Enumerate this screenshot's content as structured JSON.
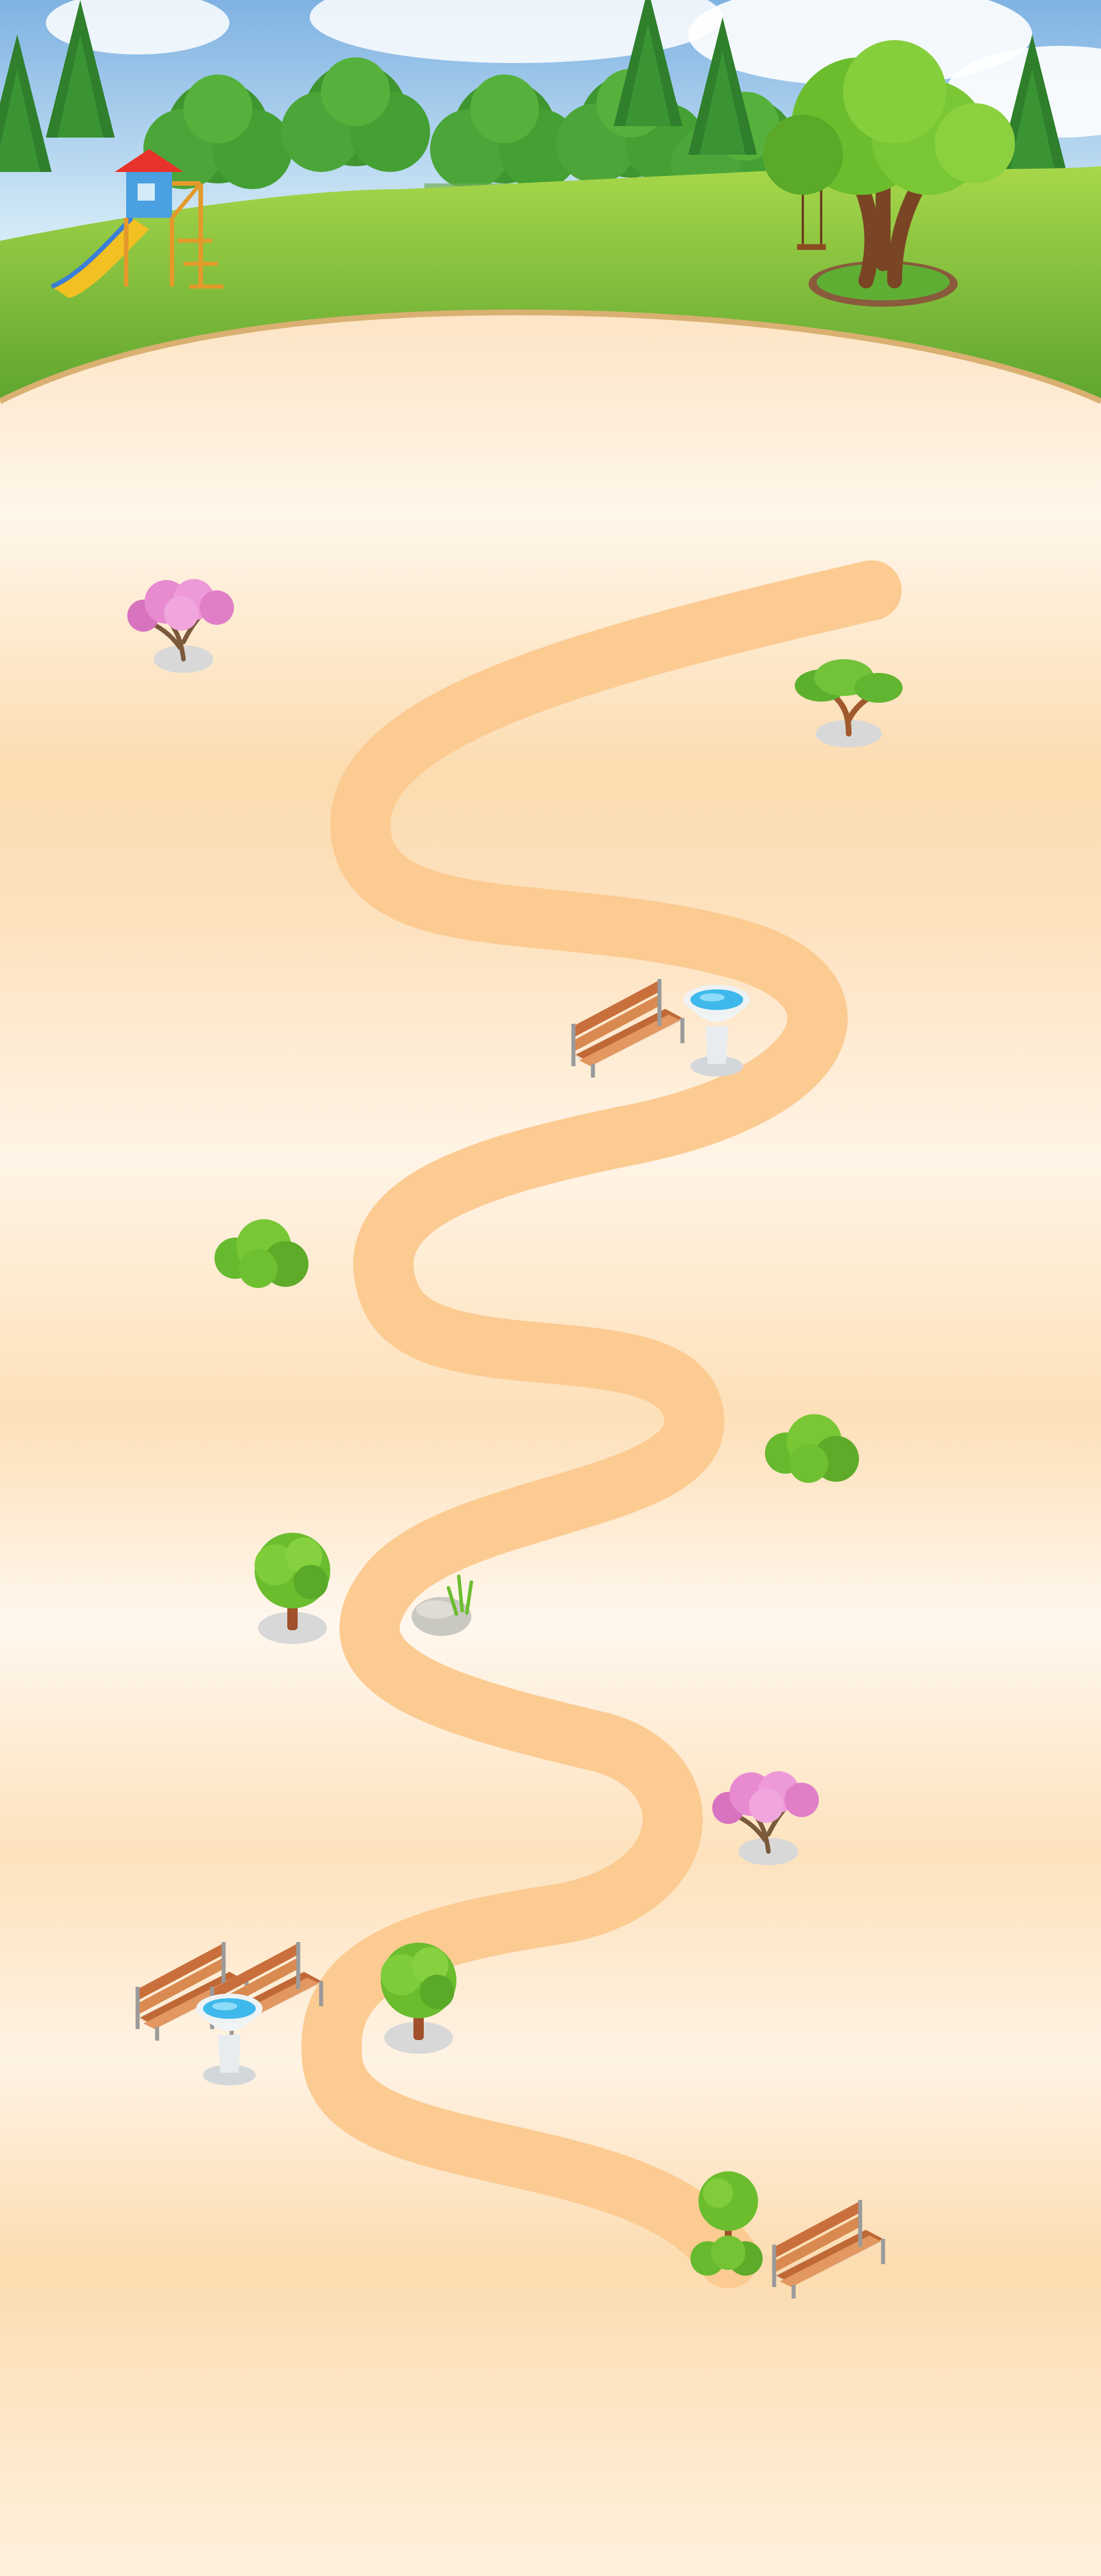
{
  "scene": {
    "name": "park-level-map",
    "colors": {
      "sky": "#9ec9ec",
      "cloud": "#ffffff",
      "grass": "#7cc23f",
      "grass_light": "#a6d64c",
      "grass_dark": "#4f9a2b",
      "pine": "#2f7f2c",
      "sand": "#fde3c1",
      "sand_light": "#fff6ea",
      "path": "#fccb92",
      "trunk": "#8a4b22",
      "foliage": "#6bbd2e",
      "blossom": "#e586c9",
      "bench_wood": "#c9733f",
      "water": "#4fc3f0",
      "stone": "#c9c9c2",
      "slide": "#f2c022",
      "roof": "#e8322b"
    },
    "decorations": [
      "playground-slide",
      "swing-tree",
      "pink-blossom-tree",
      "acacia-tree",
      "park-bench",
      "water-fountain",
      "shrub",
      "round-tree",
      "rock-with-grass"
    ]
  }
}
